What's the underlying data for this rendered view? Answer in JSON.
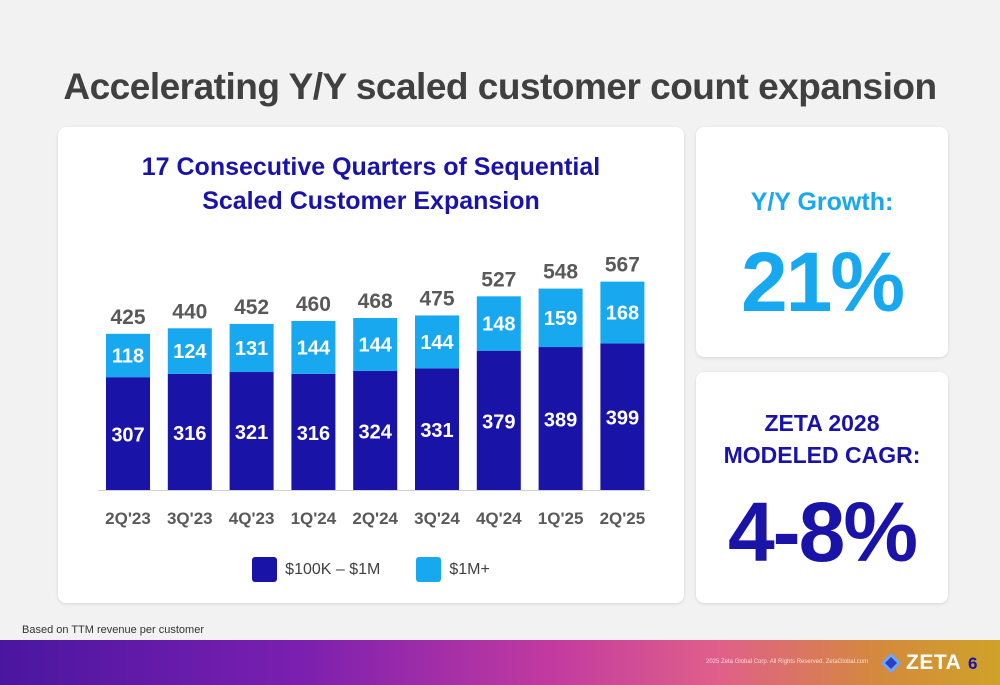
{
  "page": {
    "title": "Accelerating Y/Y scaled customer count expansion",
    "footnote": "Based on TTM revenue per customer",
    "copyright": "2025 Zeta Global Corp. All Rights Reserved. ZetaGlobal.com",
    "logo_text": "ZETA",
    "page_number": "6"
  },
  "kpis": {
    "growth_label": "Y/Y Growth:",
    "growth_value": "21%",
    "cagr_label_line1": "ZETA 2028",
    "cagr_label_line2": "MODELED CAGR:",
    "cagr_value": "4-8%"
  },
  "chart_data": {
    "type": "bar",
    "stacked": true,
    "title_line1": "17 Consecutive Quarters of Sequential",
    "title_line2": "Scaled Customer Expansion",
    "categories": [
      "2Q'23",
      "3Q'23",
      "4Q'23",
      "1Q'24",
      "2Q'24",
      "3Q'24",
      "4Q'24",
      "1Q'25",
      "2Q'25"
    ],
    "series": [
      {
        "name": "$100K – $1M",
        "color": "#1a13a8",
        "values": [
          307,
          316,
          321,
          316,
          324,
          331,
          379,
          389,
          399
        ]
      },
      {
        "name": "$1M+",
        "color": "#18a8ef",
        "values": [
          118,
          124,
          131,
          144,
          144,
          144,
          148,
          159,
          168
        ]
      }
    ],
    "totals": [
      425,
      440,
      452,
      460,
      468,
      475,
      527,
      548,
      567
    ],
    "ylim": [
      0,
      600
    ],
    "grid": false,
    "legend_position": "bottom"
  }
}
